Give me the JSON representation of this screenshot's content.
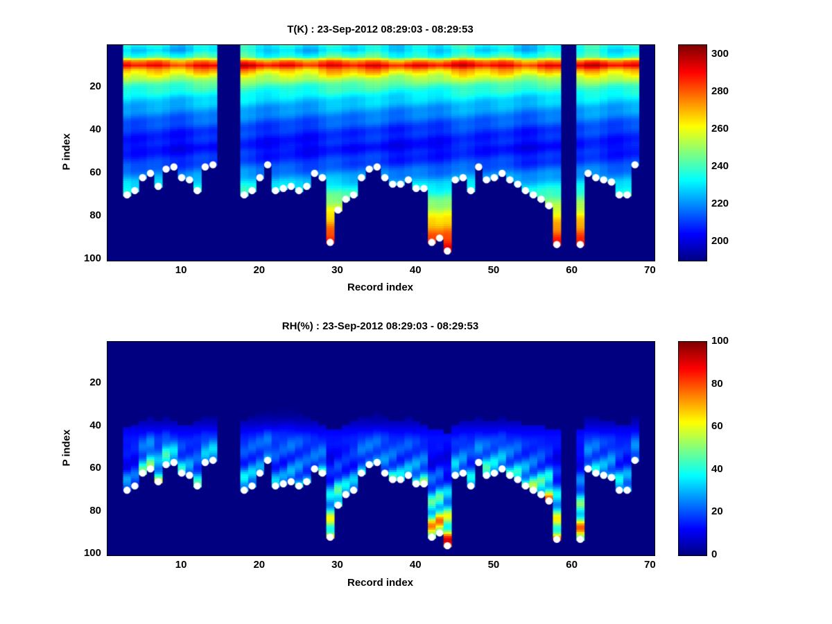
{
  "records": [
    [
      3,
      70,
      40,
      45
    ],
    [
      4,
      68,
      35,
      44
    ],
    [
      5,
      62,
      55,
      42
    ],
    [
      6,
      60,
      60,
      40
    ],
    [
      7,
      66,
      65,
      42
    ],
    [
      8,
      58,
      60,
      40
    ],
    [
      9,
      57,
      55,
      42
    ],
    [
      10,
      62,
      50,
      44
    ],
    [
      11,
      63,
      45,
      44
    ],
    [
      12,
      68,
      50,
      42
    ],
    [
      13,
      57,
      40,
      40
    ],
    [
      14,
      56,
      45,
      40
    ],
    [
      18,
      70,
      55,
      42
    ],
    [
      19,
      68,
      50,
      40
    ],
    [
      20,
      62,
      35,
      38
    ],
    [
      21,
      56,
      30,
      36
    ],
    [
      22,
      68,
      40,
      38
    ],
    [
      23,
      67,
      35,
      36
    ],
    [
      24,
      66,
      40,
      36
    ],
    [
      25,
      68,
      45,
      38
    ],
    [
      26,
      66,
      40,
      40
    ],
    [
      27,
      60,
      35,
      42
    ],
    [
      28,
      62,
      55,
      44
    ],
    [
      29,
      92,
      85,
      46
    ],
    [
      30,
      77,
      70,
      46
    ],
    [
      31,
      72,
      50,
      44
    ],
    [
      32,
      70,
      45,
      42
    ],
    [
      33,
      62,
      40,
      40
    ],
    [
      34,
      58,
      35,
      40
    ],
    [
      35,
      57,
      30,
      38
    ],
    [
      36,
      62,
      40,
      40
    ],
    [
      37,
      65,
      50,
      42
    ],
    [
      38,
      65,
      45,
      42
    ],
    [
      39,
      63,
      40,
      40
    ],
    [
      40,
      67,
      55,
      42
    ],
    [
      41,
      67,
      60,
      44
    ],
    [
      42,
      92,
      90,
      46
    ],
    [
      43,
      90,
      95,
      46
    ],
    [
      44,
      96,
      100,
      48
    ],
    [
      45,
      63,
      55,
      44
    ],
    [
      46,
      62,
      45,
      42
    ],
    [
      47,
      68,
      50,
      42
    ],
    [
      48,
      57,
      35,
      40
    ],
    [
      49,
      63,
      60,
      42
    ],
    [
      50,
      62,
      55,
      42
    ],
    [
      51,
      60,
      45,
      40
    ],
    [
      52,
      63,
      50,
      42
    ],
    [
      53,
      65,
      55,
      42
    ],
    [
      54,
      68,
      60,
      44
    ],
    [
      55,
      70,
      65,
      44
    ],
    [
      56,
      72,
      70,
      44
    ],
    [
      57,
      75,
      85,
      46
    ],
    [
      58,
      93,
      90,
      46
    ],
    [
      61,
      93,
      95,
      46
    ],
    [
      62,
      60,
      40,
      40
    ],
    [
      63,
      62,
      45,
      40
    ],
    [
      64,
      63,
      45,
      42
    ],
    [
      65,
      64,
      50,
      42
    ],
    [
      66,
      70,
      55,
      44
    ],
    [
      67,
      70,
      50,
      44
    ],
    [
      68,
      56,
      35,
      40
    ]
  ],
  "records_legend": "each record = [record_index, surface_P_index (white dot), RH_near_surface_%, RH_top_P_index]",
  "missing_records": [
    1,
    2,
    15,
    16,
    17,
    59,
    60,
    69,
    70
  ],
  "chart_data": [
    {
      "type": "heatmap",
      "title": "T(K) : 23-Sep-2012 08:29:03 - 08:29:53",
      "xlabel": "Record index",
      "ylabel": "P index",
      "x_ticks": [
        10,
        20,
        30,
        40,
        50,
        60,
        70
      ],
      "y_ticks": [
        20,
        40,
        60,
        80,
        100
      ],
      "xlim": [
        0.5,
        70.5
      ],
      "ylim": [
        0.5,
        100.5
      ],
      "y_inverted": true,
      "colormap": "jet",
      "background_value_color": "#000080",
      "colorbar": {
        "min": 190,
        "max": 305,
        "ticks": [
          300,
          280,
          260,
          240,
          220,
          200
        ]
      },
      "temperature_profile": {
        "p": [
          1,
          3,
          6,
          8,
          10,
          12,
          15,
          19,
          25,
          32,
          40,
          48,
          55,
          62,
          70,
          78,
          86,
          94,
          100
        ],
        "t_k": [
          233,
          230,
          240,
          276,
          291,
          272,
          257,
          242,
          230,
          220,
          210,
          205,
          211,
          223,
          241,
          259,
          276,
          293,
          301
        ]
      },
      "surface_marker": "white dot at [record_index, surface_P_index]"
    },
    {
      "type": "heatmap",
      "title": "RH(%) : 23-Sep-2012 08:29:03 - 08:29:53",
      "xlabel": "Record index",
      "ylabel": "P index",
      "x_ticks": [
        10,
        20,
        30,
        40,
        50,
        60,
        70
      ],
      "y_ticks": [
        20,
        40,
        60,
        80,
        100
      ],
      "xlim": [
        0.5,
        70.5
      ],
      "ylim": [
        0.5,
        100.5
      ],
      "y_inverted": true,
      "colormap": "jet",
      "background_value_color": "#000080",
      "colorbar": {
        "min": 0,
        "max": 100,
        "ticks": [
          100,
          80,
          60,
          40,
          20,
          0
        ]
      },
      "rh_description": "RH is 0 above the RH_top_P_index of each record, then increases toward RH_near_surface_% at the white-dot surface level",
      "surface_marker": "white dot at [record_index, surface_P_index]"
    }
  ]
}
